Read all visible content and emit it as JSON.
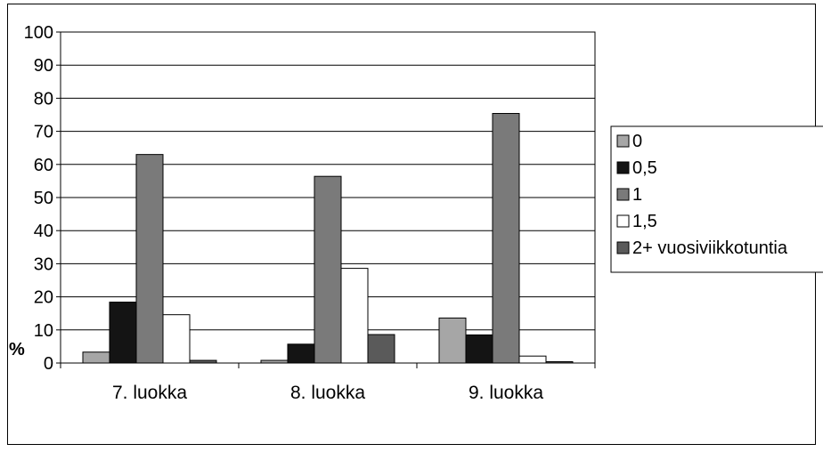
{
  "chart_data": {
    "type": "bar",
    "ylabel": "%",
    "ylim": [
      0,
      100
    ],
    "yticks": [
      "0",
      "10",
      "20",
      "30",
      "40",
      "50",
      "60",
      "70",
      "80",
      "90",
      "100"
    ],
    "grid": true,
    "legend_position": "right",
    "categories": [
      "7. luokka",
      "8. luokka",
      "9. luokka"
    ],
    "series": [
      {
        "name": "0",
        "color": "#a6a6a6",
        "values": [
          3.3,
          0.8,
          13.6
        ]
      },
      {
        "name": "0,5",
        "color": "#141414",
        "values": [
          18.4,
          5.7,
          8.5
        ]
      },
      {
        "name": "1",
        "color": "#7a7a7a",
        "values": [
          63.0,
          56.4,
          75.4
        ]
      },
      {
        "name": "1,5",
        "color": "#ffffff",
        "values": [
          14.6,
          28.6,
          2.1
        ]
      },
      {
        "name": "2+ vuosiviikkotuntia",
        "color": "#5a5a5a",
        "values": [
          0.8,
          8.6,
          0.4
        ]
      }
    ]
  }
}
